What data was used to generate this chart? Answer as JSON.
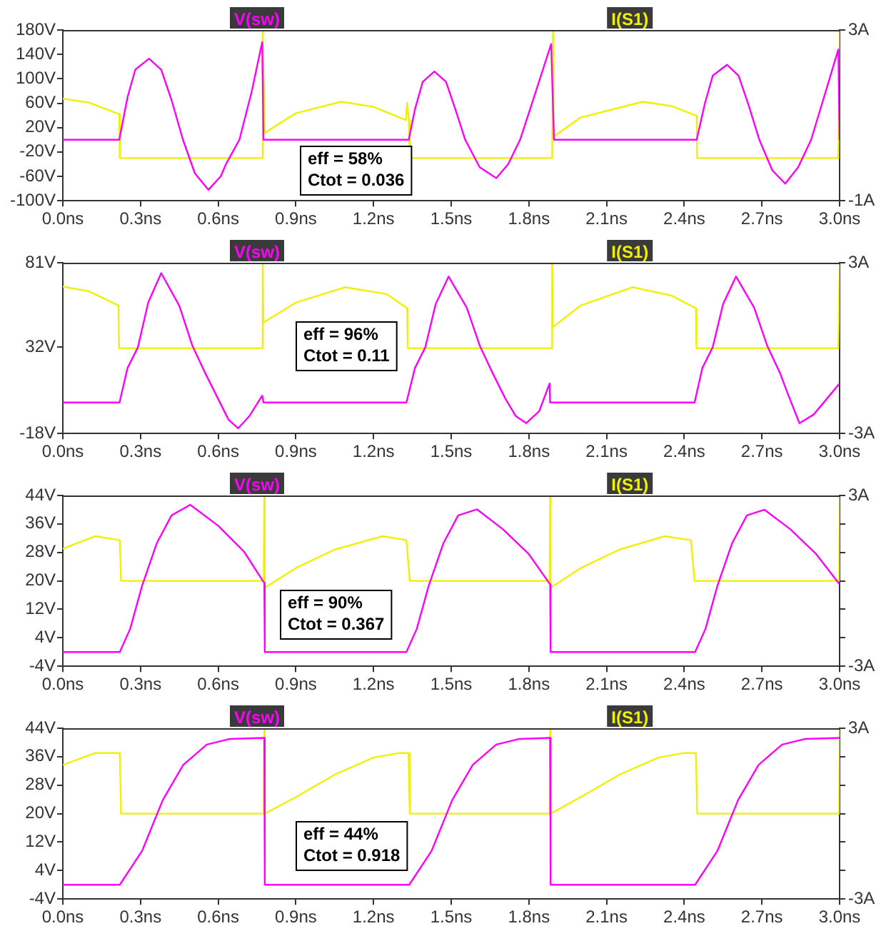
{
  "chart_data": [
    {
      "type": "line",
      "legend": "top",
      "xlim": [
        0,
        3
      ],
      "xticks": [
        {
          "value": 0,
          "label": "0.0ns"
        },
        {
          "value": 0.3,
          "label": "0.3ns"
        },
        {
          "value": 0.6,
          "label": "0.6ns"
        },
        {
          "value": 0.9,
          "label": "0.9ns"
        },
        {
          "value": 1.2,
          "label": "1.2ns"
        },
        {
          "value": 1.5,
          "label": "1.5ns"
        },
        {
          "value": 1.8,
          "label": "1.8ns"
        },
        {
          "value": 2.1,
          "label": "2.1ns"
        },
        {
          "value": 2.4,
          "label": "2.4ns"
        },
        {
          "value": 2.7,
          "label": "2.7ns"
        },
        {
          "value": 3,
          "label": "3.0ns"
        }
      ],
      "ylim": [
        -100,
        180
      ],
      "yticks": [
        {
          "value": -100,
          "label": "-100V"
        },
        {
          "value": -60,
          "label": "-60V"
        },
        {
          "value": -20,
          "label": "-20V"
        },
        {
          "value": 20,
          "label": "20V"
        },
        {
          "value": 60,
          "label": "60V"
        },
        {
          "value": 100,
          "label": "100V"
        },
        {
          "value": 140,
          "label": "140V"
        },
        {
          "value": 180,
          "label": "180V"
        }
      ],
      "y2lim": [
        -1,
        3
      ],
      "y2ticks": [
        {
          "value": -1,
          "label": "-1A"
        },
        {
          "value": 3,
          "label": "3A"
        }
      ],
      "annotations": [
        "eff = 58%",
        "Ctot = 0.036"
      ],
      "series": [
        {
          "name": "V(sw)",
          "color": "#ff00ff",
          "x": [
            0,
            0.218,
            0.25,
            0.28,
            0.333,
            0.38,
            0.42,
            0.464,
            0.51,
            0.562,
            0.61,
            0.63,
            0.682,
            0.73,
            0.77,
            0.775,
            1.336,
            1.36,
            1.39,
            1.435,
            1.48,
            1.52,
            1.554,
            1.61,
            1.674,
            1.72,
            1.766,
            1.82,
            1.886,
            1.897,
            2.448,
            2.48,
            2.51,
            2.565,
            2.61,
            2.65,
            2.69,
            2.74,
            2.79,
            2.84,
            2.89,
            2.94,
            2.995,
            3
          ],
          "values": [
            0,
            0,
            70,
            115,
            133,
            115,
            65,
            0,
            -55,
            -82,
            -60,
            -40,
            0,
            80,
            160,
            0,
            0,
            50,
            95,
            112,
            95,
            45,
            0,
            -45,
            -63,
            -40,
            0,
            70,
            157,
            0,
            0,
            60,
            105,
            123,
            105,
            55,
            0,
            -50,
            -72,
            -45,
            0,
            70,
            148,
            0
          ]
        },
        {
          "name": "I(S1)",
          "color": "#f0f000",
          "axis": "y2",
          "x": [
            0,
            0.1,
            0.218,
            0.22,
            0.77,
            0.772,
            0.78,
            0.9,
            1.075,
            1.2,
            1.325,
            1.33,
            1.336,
            1.34,
            1.89,
            1.893,
            1.895,
            2,
            2.24,
            2.35,
            2.448,
            2.45,
            2.995,
            3
          ],
          "values": [
            1.39,
            1.3,
            1.03,
            0,
            0,
            3,
            0.59,
            1.05,
            1.32,
            1.2,
            0.89,
            1.3,
            0.89,
            0,
            0,
            3,
            0.5,
            0.95,
            1.32,
            1.22,
            0.99,
            0,
            0,
            3
          ]
        }
      ]
    },
    {
      "type": "line",
      "legend": "top",
      "xlim": [
        0,
        3
      ],
      "xticks": [
        {
          "value": 0,
          "label": "0.0ns"
        },
        {
          "value": 0.3,
          "label": "0.3ns"
        },
        {
          "value": 0.6,
          "label": "0.6ns"
        },
        {
          "value": 0.9,
          "label": "0.9ns"
        },
        {
          "value": 1.2,
          "label": "1.2ns"
        },
        {
          "value": 1.5,
          "label": "1.5ns"
        },
        {
          "value": 1.8,
          "label": "1.8ns"
        },
        {
          "value": 2.1,
          "label": "2.1ns"
        },
        {
          "value": 2.4,
          "label": "2.4ns"
        },
        {
          "value": 2.7,
          "label": "2.7ns"
        },
        {
          "value": 3,
          "label": "3.0ns"
        }
      ],
      "ylim": [
        -18,
        81
      ],
      "yticks": [
        {
          "value": -18,
          "label": "-18V"
        },
        {
          "value": 32,
          "label": "32V"
        },
        {
          "value": 81,
          "label": "81V"
        }
      ],
      "y2lim": [
        -3,
        3
      ],
      "y2ticks": [
        {
          "value": -3,
          "label": "-3A"
        },
        {
          "value": 3,
          "label": "3A"
        }
      ],
      "annotations": [
        "eff = 96%",
        "Ctot = 0.11"
      ],
      "series": [
        {
          "name": "V(sw)",
          "color": "#ff00ff",
          "x": [
            0,
            0.219,
            0.25,
            0.29,
            0.33,
            0.38,
            0.45,
            0.5,
            0.55,
            0.6,
            0.64,
            0.677,
            0.72,
            0.77,
            0.775,
            1.327,
            1.36,
            1.4,
            1.44,
            1.49,
            1.56,
            1.61,
            1.66,
            1.71,
            1.75,
            1.79,
            1.84,
            1.88,
            1.882,
            2.44,
            2.47,
            2.51,
            2.55,
            2.6,
            2.67,
            2.72,
            2.77,
            2.8,
            2.845,
            2.9,
            2.95,
            3
          ],
          "values": [
            0,
            0,
            20,
            32,
            58,
            75,
            56,
            33,
            17,
            2,
            -10,
            -15,
            -8,
            4,
            0,
            0,
            20,
            32,
            57,
            73,
            55,
            33,
            17,
            2,
            -8,
            -12,
            -5,
            11,
            0,
            0,
            20,
            32,
            57,
            73,
            55,
            33,
            17,
            5,
            -12,
            -7,
            2,
            11
          ]
        },
        {
          "name": "I(S1)",
          "color": "#f0f000",
          "axis": "y2",
          "x": [
            0,
            0.1,
            0.215,
            0.217,
            0.77,
            0.772,
            0.775,
            0.9,
            1.09,
            1.25,
            1.33,
            1.332,
            1.888,
            1.89,
            1.893,
            2,
            2.2,
            2.35,
            2.445,
            2.447,
            2.995,
            3
          ],
          "values": [
            2.16,
            2,
            1.5,
            0,
            0,
            3,
            0.9,
            1.6,
            2.14,
            1.9,
            1.4,
            0,
            0,
            3,
            0.74,
            1.5,
            2.14,
            1.85,
            1.4,
            0,
            0,
            3
          ]
        }
      ]
    },
    {
      "type": "line",
      "legend": "top",
      "xlim": [
        0,
        3
      ],
      "xticks": [
        {
          "value": 0,
          "label": "0.0ns"
        },
        {
          "value": 0.3,
          "label": "0.3ns"
        },
        {
          "value": 0.6,
          "label": "0.6ns"
        },
        {
          "value": 0.9,
          "label": "0.9ns"
        },
        {
          "value": 1.2,
          "label": "1.2ns"
        },
        {
          "value": 1.5,
          "label": "1.5ns"
        },
        {
          "value": 1.8,
          "label": "1.8ns"
        },
        {
          "value": 2.1,
          "label": "2.1ns"
        },
        {
          "value": 2.4,
          "label": "2.4ns"
        },
        {
          "value": 2.7,
          "label": "2.7ns"
        },
        {
          "value": 3,
          "label": "3.0ns"
        }
      ],
      "ylim": [
        -4,
        44
      ],
      "yticks": [
        {
          "value": -4,
          "label": "-4V"
        },
        {
          "value": 4,
          "label": "4V"
        },
        {
          "value": 12,
          "label": "12V"
        },
        {
          "value": 20,
          "label": "20V"
        },
        {
          "value": 28,
          "label": "28V"
        },
        {
          "value": 36,
          "label": "36V"
        },
        {
          "value": 44,
          "label": "44V"
        }
      ],
      "y2lim": [
        -3,
        3
      ],
      "y2ticks": [
        {
          "value": -3,
          "label": "-3A"
        },
        {
          "value": -2,
          "label": null
        },
        {
          "value": -1,
          "label": null
        },
        {
          "value": 0,
          "label": null
        },
        {
          "value": 1,
          "label": null
        },
        {
          "value": 2,
          "label": null
        },
        {
          "value": 3,
          "label": "3A"
        }
      ],
      "annotations": [
        "eff = 90%",
        "Ctot = 0.367"
      ],
      "series": [
        {
          "name": "V(sw)",
          "color": "#ff00ff",
          "x": [
            0,
            0.22,
            0.26,
            0.306,
            0.363,
            0.42,
            0.492,
            0.6,
            0.7,
            0.778,
            0.78,
            1.327,
            1.367,
            1.413,
            1.47,
            1.527,
            1.6,
            1.7,
            1.8,
            1.882,
            1.884,
            2.442,
            2.482,
            2.528,
            2.585,
            2.642,
            2.71,
            2.81,
            2.91,
            3
          ],
          "values": [
            0,
            0,
            6.5,
            18.6,
            30.6,
            38.4,
            41.4,
            35.5,
            28.2,
            19.4,
            0,
            0,
            6.5,
            18.6,
            30.6,
            38.4,
            40.1,
            34.5,
            27.5,
            19,
            0,
            0,
            6.5,
            18.6,
            30.6,
            38.4,
            40,
            34.5,
            27.5,
            19
          ]
        },
        {
          "name": "I(S1)",
          "color": "#f0f000",
          "axis": "y2",
          "x": [
            0,
            0.125,
            0.22,
            0.225,
            0.776,
            0.778,
            0.78,
            0.9,
            1.05,
            1.236,
            1.327,
            1.34,
            1.88,
            1.882,
            1.884,
            2,
            2.15,
            2.325,
            2.426,
            2.44,
            2.998,
            3
          ],
          "values": [
            1.13,
            1.57,
            1.43,
            0,
            0,
            3,
            -0.24,
            0.45,
            1.1,
            1.57,
            1.43,
            0,
            0,
            3,
            -0.24,
            0.45,
            1.1,
            1.57,
            1.43,
            0,
            0,
            3
          ]
        }
      ]
    },
    {
      "type": "line",
      "legend": "top",
      "xlim": [
        0,
        3
      ],
      "xticks": [
        {
          "value": 0,
          "label": "0.0ns"
        },
        {
          "value": 0.3,
          "label": "0.3ns"
        },
        {
          "value": 0.6,
          "label": "0.6ns"
        },
        {
          "value": 0.9,
          "label": "0.9ns"
        },
        {
          "value": 1.2,
          "label": "1.2ns"
        },
        {
          "value": 1.5,
          "label": "1.5ns"
        },
        {
          "value": 1.8,
          "label": "1.8ns"
        },
        {
          "value": 2.1,
          "label": "2.1ns"
        },
        {
          "value": 2.4,
          "label": "2.4ns"
        },
        {
          "value": 2.7,
          "label": "2.7ns"
        },
        {
          "value": 3,
          "label": "3.0ns"
        }
      ],
      "ylim": [
        -4,
        44
      ],
      "yticks": [
        {
          "value": -4,
          "label": "-4V"
        },
        {
          "value": 4,
          "label": "4V"
        },
        {
          "value": 12,
          "label": "12V"
        },
        {
          "value": 20,
          "label": "20V"
        },
        {
          "value": 28,
          "label": "28V"
        },
        {
          "value": 36,
          "label": "36V"
        },
        {
          "value": 44,
          "label": "44V"
        }
      ],
      "y2lim": [
        -3,
        3
      ],
      "y2ticks": [
        {
          "value": -3,
          "label": "-3A"
        },
        {
          "value": -2,
          "label": null
        },
        {
          "value": -1,
          "label": null
        },
        {
          "value": 0,
          "label": null
        },
        {
          "value": 1,
          "label": null
        },
        {
          "value": 2,
          "label": null
        },
        {
          "value": 3,
          "label": "3A"
        }
      ],
      "annotations": [
        "eff = 44%",
        "Ctot = 0.918"
      ],
      "series": [
        {
          "name": "V(sw)",
          "color": "#ff00ff",
          "x": [
            0,
            0.22,
            0.306,
            0.386,
            0.465,
            0.556,
            0.646,
            0.778,
            0.78,
            1.338,
            1.424,
            1.504,
            1.583,
            1.674,
            1.764,
            1.882,
            1.884,
            2.442,
            2.528,
            2.608,
            2.687,
            2.778,
            2.868,
            3
          ],
          "values": [
            0,
            0,
            9.5,
            23.8,
            33.7,
            39.4,
            41,
            41.3,
            0,
            0,
            9.5,
            23.8,
            33.7,
            39.4,
            41,
            41.3,
            0,
            0,
            9.5,
            23.8,
            33.7,
            39.4,
            41,
            41.3
          ]
        },
        {
          "name": "I(S1)",
          "color": "#f0f000",
          "axis": "y2",
          "x": [
            0,
            0.125,
            0.22,
            0.225,
            0.776,
            0.778,
            0.78,
            0.9,
            1.05,
            1.2,
            1.3,
            1.335,
            1.34,
            1.88,
            1.882,
            1.884,
            2,
            2.15,
            2.3,
            2.4,
            2.445,
            2.45,
            2.998,
            3
          ],
          "values": [
            1.71,
            2.13,
            2.13,
            0,
            0,
            3,
            0,
            0.58,
            1.37,
            1.97,
            2.13,
            2.13,
            0,
            0,
            3,
            0,
            0.58,
            1.37,
            1.97,
            2.13,
            2.13,
            0,
            0,
            3
          ]
        }
      ]
    }
  ]
}
